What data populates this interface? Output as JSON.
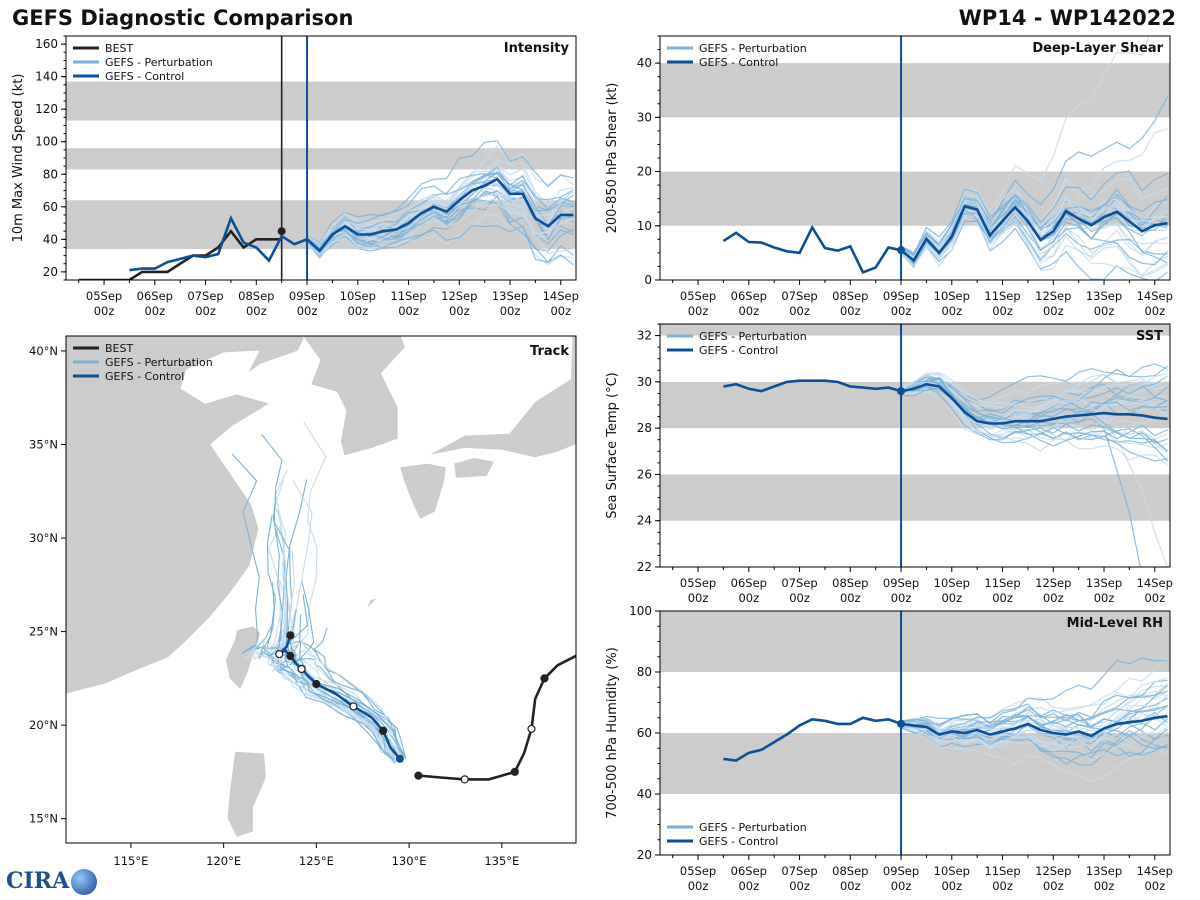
{
  "page": {
    "title_left": "GEFS Diagnostic Comparison",
    "title_right": "WP14 - WP142022"
  },
  "logo_text": "CIRA",
  "colors": {
    "best": "#222222",
    "perturbation": "#7ab3d9",
    "perturbation_light": "#c5dcee",
    "control": "#0b4f99",
    "band": "#cccccc"
  },
  "time_axis": {
    "ticks": [
      {
        "label": "05Sep\n00z",
        "t": 0
      },
      {
        "label": "06Sep\n00z",
        "t": 1
      },
      {
        "label": "07Sep\n00z",
        "t": 2
      },
      {
        "label": "08Sep\n00z",
        "t": 3
      },
      {
        "label": "09Sep\n00z",
        "t": 4
      },
      {
        "label": "10Sep\n00z",
        "t": 5
      },
      {
        "label": "11Sep\n00z",
        "t": 6
      },
      {
        "label": "12Sep\n00z",
        "t": 7
      },
      {
        "label": "13Sep\n00z",
        "t": 8
      },
      {
        "label": "14Sep\n00z",
        "t": 9
      }
    ],
    "range": [
      -0.75,
      9.3
    ],
    "init_time": 4.0
  },
  "chart_data": [
    {
      "id": "intensity",
      "type": "line",
      "title": "Intensity",
      "ylabel": "10m Max Wind Speed (kt)",
      "ylim": [
        15,
        165
      ],
      "yticks": [
        20,
        40,
        60,
        80,
        100,
        120,
        140,
        160
      ],
      "bands": [
        [
          34,
          64
        ],
        [
          83,
          96
        ],
        [
          113,
          137
        ]
      ],
      "legend": [
        "BEST",
        "GEFS - Perturbation",
        "GEFS - Control"
      ],
      "best_time": 3.5,
      "best": {
        "x": [
          -0.5,
          -0.25,
          0,
          0.25,
          0.5,
          0.75,
          1,
          1.25,
          1.5,
          1.75,
          2,
          2.25,
          2.5,
          2.75,
          3,
          3.25,
          3.5
        ],
        "y": [
          15,
          15,
          15,
          15,
          15,
          20,
          20,
          20,
          25,
          30,
          30,
          35,
          45,
          35,
          40,
          40,
          40
        ]
      },
      "best_end": {
        "x": [
          3.25,
          3.5
        ],
        "y": [
          40,
          45
        ]
      },
      "control": {
        "x": [
          0.5,
          0.75,
          1,
          1.25,
          1.5,
          1.75,
          2,
          2.25,
          2.5,
          2.75,
          3,
          3.25,
          3.5,
          3.75,
          4,
          4.25,
          4.5,
          4.75,
          5,
          5.25,
          5.5,
          5.75,
          6,
          6.25,
          6.5,
          6.75,
          7,
          7.25,
          7.5,
          7.75,
          8,
          8.25,
          8.5,
          8.75,
          9,
          9.25
        ],
        "y": [
          21,
          22,
          22,
          26,
          28,
          30,
          29,
          31,
          53,
          38,
          35,
          27,
          42,
          37,
          40,
          33,
          43,
          48,
          43,
          43,
          45,
          46,
          50,
          56,
          60,
          57,
          64,
          70,
          73,
          77,
          68,
          68,
          53,
          48,
          55,
          55
        ]
      }
    },
    {
      "id": "shear",
      "type": "line",
      "title": "Deep-Layer Shear",
      "ylabel": "200-850 hPa Shear (kt)",
      "ylim": [
        0,
        45
      ],
      "yticks": [
        0,
        10,
        20,
        30,
        40
      ],
      "bands": [
        [
          10,
          20
        ],
        [
          30,
          40
        ]
      ],
      "legend": [
        "GEFS - Perturbation",
        "GEFS - Control"
      ],
      "control": {
        "x": [
          0.5,
          0.75,
          1,
          1.25,
          1.5,
          1.75,
          2,
          2.25,
          2.5,
          2.75,
          3,
          3.25,
          3.5,
          3.75,
          4,
          4.25,
          4.5,
          4.75,
          5,
          5.25,
          5.5,
          5.75,
          6,
          6.25,
          6.5,
          6.75,
          7,
          7.25,
          7.5,
          7.75,
          8,
          8.25,
          8.5,
          8.75,
          9,
          9.25
        ],
        "y": [
          7.2,
          8.7,
          7.0,
          6.9,
          6.0,
          5.3,
          5.0,
          9.7,
          5.9,
          5.4,
          6.2,
          1.4,
          2.3,
          6.0,
          5.5,
          3.6,
          7.6,
          5.0,
          8.0,
          13.6,
          13.0,
          8.2,
          10.9,
          13.4,
          10.8,
          7.4,
          9.0,
          12.7,
          11.3,
          10.1,
          11.6,
          12.6,
          10.8,
          9.0,
          10.1,
          10.5
        ]
      }
    },
    {
      "id": "sst",
      "type": "line",
      "title": "SST",
      "ylabel": "Sea Surface Temp (°C)",
      "ylim": [
        22,
        32.5
      ],
      "yticks": [
        22,
        24,
        26,
        28,
        30,
        32
      ],
      "bands": [
        [
          24,
          26
        ],
        [
          28,
          30
        ],
        [
          32,
          32.5
        ]
      ],
      "legend": [
        "GEFS - Perturbation",
        "GEFS - Control"
      ],
      "control": {
        "x": [
          0.5,
          0.75,
          1,
          1.25,
          1.5,
          1.75,
          2,
          2.25,
          2.5,
          2.75,
          3,
          3.25,
          3.5,
          3.75,
          4,
          4.25,
          4.5,
          4.75,
          5,
          5.25,
          5.5,
          5.75,
          6,
          6.25,
          6.5,
          6.75,
          7,
          7.25,
          7.5,
          7.75,
          8,
          8.25,
          8.5,
          8.75,
          9,
          9.25
        ],
        "y": [
          29.8,
          29.9,
          29.7,
          29.6,
          29.8,
          30.0,
          30.05,
          30.05,
          30.05,
          30.0,
          29.8,
          29.75,
          29.7,
          29.75,
          29.6,
          29.7,
          29.9,
          29.8,
          29.3,
          28.7,
          28.3,
          28.2,
          28.2,
          28.3,
          28.3,
          28.3,
          28.4,
          28.5,
          28.55,
          28.6,
          28.65,
          28.6,
          28.6,
          28.55,
          28.45,
          28.4
        ]
      }
    },
    {
      "id": "rh",
      "type": "line",
      "title": "Mid-Level RH",
      "ylabel": "700-500 hPa Humidity (%)",
      "ylim": [
        20,
        100
      ],
      "yticks": [
        20,
        40,
        60,
        80,
        100
      ],
      "bands": [
        [
          40,
          60
        ],
        [
          80,
          100
        ]
      ],
      "legend": [
        "GEFS - Perturbation",
        "GEFS - Control"
      ],
      "control": {
        "x": [
          0.5,
          0.75,
          1,
          1.25,
          1.5,
          1.75,
          2,
          2.25,
          2.5,
          2.75,
          3,
          3.25,
          3.5,
          3.75,
          4,
          4.25,
          4.5,
          4.75,
          5,
          5.25,
          5.5,
          5.75,
          6,
          6.25,
          6.5,
          6.75,
          7,
          7.25,
          7.5,
          7.75,
          8,
          8.25,
          8.5,
          8.75,
          9,
          9.25
        ],
        "y": [
          51.5,
          51,
          53.5,
          54.5,
          57,
          59.5,
          62.5,
          64.5,
          64,
          63,
          63,
          65,
          64,
          64.5,
          63,
          62.5,
          62,
          59.5,
          60.5,
          60,
          61,
          59.5,
          60.5,
          61.5,
          63,
          61,
          60,
          59.5,
          60.5,
          59,
          61.5,
          63,
          63.5,
          64,
          65,
          65.5
        ]
      }
    },
    {
      "id": "track",
      "type": "map",
      "title": "Track",
      "legend": [
        "BEST",
        "GEFS - Perturbation",
        "GEFS - Control"
      ],
      "lon_range": [
        111.5,
        139
      ],
      "lat_range": [
        13.7,
        40.8
      ],
      "lon_ticks": [
        {
          "v": 115,
          "label": "115°E"
        },
        {
          "v": 120,
          "label": "120°E"
        },
        {
          "v": 125,
          "label": "125°E"
        },
        {
          "v": 130,
          "label": "130°E"
        },
        {
          "v": 135,
          "label": "135°E"
        }
      ],
      "lat_ticks": [
        {
          "v": 15,
          "label": "15°N"
        },
        {
          "v": 20,
          "label": "20°N"
        },
        {
          "v": 25,
          "label": "25°N"
        },
        {
          "v": 30,
          "label": "30°N"
        },
        {
          "v": 35,
          "label": "35°N"
        },
        {
          "v": 40,
          "label": "40°N"
        }
      ],
      "best_track": {
        "lon": [
          139.2,
          138.0,
          137.3,
          136.8,
          136.6,
          136.2,
          135.7,
          134.3,
          133.0,
          131.7,
          130.5
        ],
        "lat": [
          23.8,
          23.2,
          22.5,
          21.4,
          19.8,
          18.5,
          17.5,
          17.1,
          17.1,
          17.2,
          17.3
        ]
      },
      "control_track": {
        "lon": [
          129.5,
          129.0,
          128.6,
          128.0,
          127.0,
          126.0,
          125.0,
          124.6,
          124.2,
          123.9,
          123.6,
          123.3,
          123.0,
          123.4,
          123.6
        ],
        "lat": [
          18.2,
          18.8,
          19.7,
          20.4,
          21.0,
          21.7,
          22.2,
          22.6,
          23.0,
          23.3,
          23.7,
          24.0,
          23.8,
          24.2,
          24.8
        ]
      }
    }
  ]
}
